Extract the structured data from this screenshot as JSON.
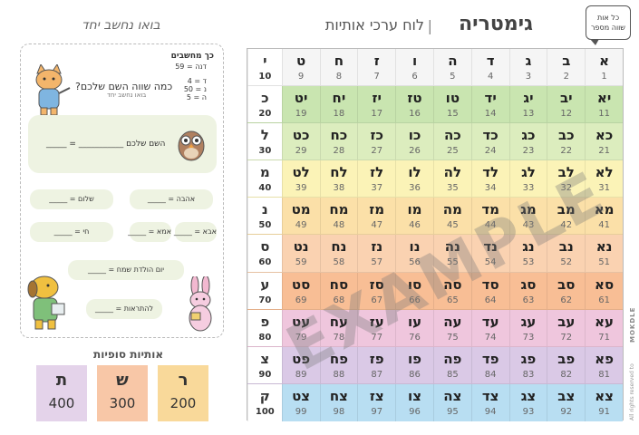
{
  "header": {
    "title": "גימטריה",
    "separator": "|",
    "subtitle": "לוח ערכי אותיות",
    "bubble_line1": "כל אות",
    "bubble_line2": "שווה מספר"
  },
  "table": {
    "rows": [
      {
        "color": "#f5f5f5",
        "head": {
          "l": "י",
          "n": "10"
        },
        "cells": [
          {
            "l": "א",
            "n": "1"
          },
          {
            "l": "ב",
            "n": "2"
          },
          {
            "l": "ג",
            "n": "3"
          },
          {
            "l": "ד",
            "n": "4"
          },
          {
            "l": "ה",
            "n": "5"
          },
          {
            "l": "ו",
            "n": "6"
          },
          {
            "l": "ז",
            "n": "7"
          },
          {
            "l": "ח",
            "n": "8"
          },
          {
            "l": "ט",
            "n": "9"
          }
        ]
      },
      {
        "color": "#c9e5b0",
        "head": {
          "l": "כ",
          "n": "20"
        },
        "cells": [
          {
            "l": "יא",
            "n": "11"
          },
          {
            "l": "יב",
            "n": "12"
          },
          {
            "l": "יג",
            "n": "13"
          },
          {
            "l": "יד",
            "n": "14"
          },
          {
            "l": "טו",
            "n": "15"
          },
          {
            "l": "טז",
            "n": "16"
          },
          {
            "l": "יז",
            "n": "17"
          },
          {
            "l": "יח",
            "n": "18"
          },
          {
            "l": "יט",
            "n": "19"
          }
        ]
      },
      {
        "color": "#dcedbe",
        "head": {
          "l": "ל",
          "n": "30"
        },
        "cells": [
          {
            "l": "כא",
            "n": "21"
          },
          {
            "l": "כב",
            "n": "22"
          },
          {
            "l": "כג",
            "n": "23"
          },
          {
            "l": "כד",
            "n": "24"
          },
          {
            "l": "כה",
            "n": "25"
          },
          {
            "l": "כו",
            "n": "26"
          },
          {
            "l": "כז",
            "n": "27"
          },
          {
            "l": "כח",
            "n": "28"
          },
          {
            "l": "כט",
            "n": "29"
          }
        ]
      },
      {
        "color": "#fbf3b7",
        "head": {
          "l": "מ",
          "n": "40"
        },
        "cells": [
          {
            "l": "לא",
            "n": "31"
          },
          {
            "l": "לב",
            "n": "32"
          },
          {
            "l": "לג",
            "n": "33"
          },
          {
            "l": "לד",
            "n": "34"
          },
          {
            "l": "לה",
            "n": "35"
          },
          {
            "l": "לו",
            "n": "36"
          },
          {
            "l": "לז",
            "n": "37"
          },
          {
            "l": "לח",
            "n": "38"
          },
          {
            "l": "לט",
            "n": "39"
          }
        ]
      },
      {
        "color": "#fbe0a8",
        "head": {
          "l": "נ",
          "n": "50"
        },
        "cells": [
          {
            "l": "מא",
            "n": "41"
          },
          {
            "l": "מב",
            "n": "42"
          },
          {
            "l": "מג",
            "n": "43"
          },
          {
            "l": "מד",
            "n": "44"
          },
          {
            "l": "מה",
            "n": "45"
          },
          {
            "l": "מו",
            "n": "46"
          },
          {
            "l": "מז",
            "n": "47"
          },
          {
            "l": "מח",
            "n": "48"
          },
          {
            "l": "מט",
            "n": "49"
          }
        ]
      },
      {
        "color": "#fad2b1",
        "head": {
          "l": "ס",
          "n": "60"
        },
        "cells": [
          {
            "l": "נא",
            "n": "51"
          },
          {
            "l": "נב",
            "n": "52"
          },
          {
            "l": "נג",
            "n": "53"
          },
          {
            "l": "נד",
            "n": "54"
          },
          {
            "l": "נה",
            "n": "55"
          },
          {
            "l": "נו",
            "n": "56"
          },
          {
            "l": "נז",
            "n": "57"
          },
          {
            "l": "נח",
            "n": "58"
          },
          {
            "l": "נט",
            "n": "59"
          }
        ]
      },
      {
        "color": "#f8be95",
        "head": {
          "l": "ע",
          "n": "70"
        },
        "cells": [
          {
            "l": "סא",
            "n": "61"
          },
          {
            "l": "סב",
            "n": "62"
          },
          {
            "l": "סג",
            "n": "63"
          },
          {
            "l": "סד",
            "n": "64"
          },
          {
            "l": "סה",
            "n": "65"
          },
          {
            "l": "סו",
            "n": "66"
          },
          {
            "l": "סז",
            "n": "67"
          },
          {
            "l": "סח",
            "n": "68"
          },
          {
            "l": "סט",
            "n": "69"
          }
        ]
      },
      {
        "color": "#efc6dd",
        "head": {
          "l": "פ",
          "n": "80"
        },
        "cells": [
          {
            "l": "עא",
            "n": "71"
          },
          {
            "l": "עב",
            "n": "72"
          },
          {
            "l": "עג",
            "n": "73"
          },
          {
            "l": "עד",
            "n": "74"
          },
          {
            "l": "עה",
            "n": "75"
          },
          {
            "l": "עו",
            "n": "76"
          },
          {
            "l": "עז",
            "n": "77"
          },
          {
            "l": "עח",
            "n": "78"
          },
          {
            "l": "עט",
            "n": "79"
          }
        ]
      },
      {
        "color": "#dac9e6",
        "head": {
          "l": "צ",
          "n": "90"
        },
        "cells": [
          {
            "l": "פא",
            "n": "81"
          },
          {
            "l": "פב",
            "n": "82"
          },
          {
            "l": "פג",
            "n": "83"
          },
          {
            "l": "פד",
            "n": "84"
          },
          {
            "l": "פה",
            "n": "85"
          },
          {
            "l": "פו",
            "n": "86"
          },
          {
            "l": "פז",
            "n": "87"
          },
          {
            "l": "פח",
            "n": "88"
          },
          {
            "l": "פט",
            "n": "89"
          }
        ]
      },
      {
        "color": "#b8def2",
        "head": {
          "l": "ק",
          "n": "100"
        },
        "cells": [
          {
            "l": "צא",
            "n": "91"
          },
          {
            "l": "צב",
            "n": "92"
          },
          {
            "l": "צג",
            "n": "93"
          },
          {
            "l": "צד",
            "n": "94"
          },
          {
            "l": "צה",
            "n": "95"
          },
          {
            "l": "צו",
            "n": "96"
          },
          {
            "l": "צז",
            "n": "97"
          },
          {
            "l": "צח",
            "n": "98"
          },
          {
            "l": "צט",
            "n": "99"
          }
        ]
      }
    ]
  },
  "watermark": "EXAMPLE",
  "copyright": "All rights reserved to",
  "logo": "MOKDLE",
  "panel": {
    "title": "בואו נחשב יחד",
    "heading": "כך מחשבים",
    "example_line1": "דנה = 59",
    "example_line2": "ד = 4",
    "example_line3": "נ = 50",
    "example_line4": "ה = 5",
    "question": "כמה שווה השם שלכם?",
    "question_sub": "בואו נחשב יחד",
    "name_calc": "השם שלכם ___________ = _____",
    "love": "אהבה = _____",
    "peace": "שלום = _____",
    "dad": "אבא = _____",
    "mom": "אמא = _____",
    "life": "חי = _____",
    "birthday": "יום הולדת שמח  =  _____",
    "tolerance": "להתראות = _____"
  },
  "finals": {
    "title": "אותיות סופיות",
    "items": [
      {
        "l": "ר",
        "n": "200",
        "color": "#f9d99a"
      },
      {
        "l": "ש",
        "n": "300",
        "color": "#f8c7a7"
      },
      {
        "l": "ת",
        "n": "400",
        "color": "#e4d3ea"
      }
    ]
  }
}
